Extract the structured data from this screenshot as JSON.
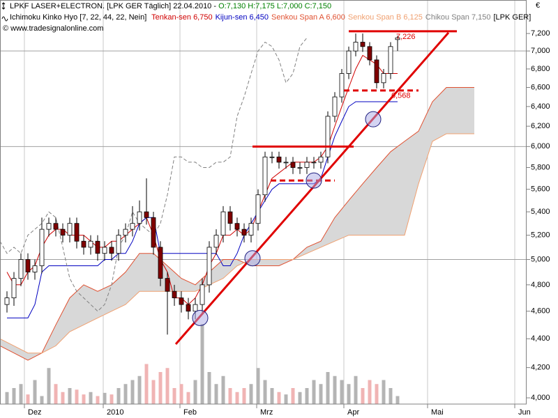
{
  "chart_data": {
    "type": "candlestick",
    "title": "LPKF LASER+ELECTRON. [LPK GER  Täglich] 22.04.2010 - ",
    "ohlc_text": "O:7,130 H:7,175 L:7,000 C:7,150",
    "indicator": "Ichimoku Kinko Hyo [7, 22, 44, 22, Nein]",
    "symbol": "[LPK GER]",
    "source": "© www.tradesignalonline.com",
    "y_unit": "€",
    "log_y": true,
    "xlim": [
      0,
      151
    ],
    "ylim": [
      3960,
      7600
    ],
    "xticks": [
      {
        "value": 7,
        "label": "Dez"
      },
      {
        "value": 29.6,
        "label": "2010"
      },
      {
        "value": 51.6,
        "label": "Feb"
      },
      {
        "value": 73.6,
        "label": "Mrz"
      },
      {
        "value": 98.6,
        "label": "Apr"
      },
      {
        "value": 122.6,
        "label": "Mai"
      },
      {
        "value": 147.6,
        "label": "Jun"
      }
    ],
    "yticks": [
      {
        "value": 4000,
        "label": "4,000"
      },
      {
        "value": 4200,
        "label": "4,200"
      },
      {
        "value": 4400,
        "label": "4,400"
      },
      {
        "value": 4600,
        "label": "4,600"
      },
      {
        "value": 4800,
        "label": "4,800"
      },
      {
        "value": 5000,
        "label": "5,000"
      },
      {
        "value": 5200,
        "label": "5,200"
      },
      {
        "value": 5400,
        "label": "5,400"
      },
      {
        "value": 5600,
        "label": "5,600"
      },
      {
        "value": 5800,
        "label": "5,800"
      },
      {
        "value": 6000,
        "label": "6,000"
      },
      {
        "value": 6200,
        "label": "6,200"
      },
      {
        "value": 6400,
        "label": "6,400"
      },
      {
        "value": 6600,
        "label": "6,600"
      },
      {
        "value": 6800,
        "label": "6,800"
      },
      {
        "value": 7000,
        "label": "7,000"
      },
      {
        "value": 7200,
        "label": "7,200"
      }
    ],
    "ygrid": [
      5000,
      6000,
      7000
    ],
    "up_color": "#ffffff",
    "down_color": "#800000",
    "volume_up_color": "#b4b4b4",
    "volume_down_color": "#f0b4b4",
    "cloud_color": "#d8d8d8",
    "x": [
      2,
      4,
      6,
      8,
      10,
      12,
      14,
      16,
      18,
      20,
      22,
      24,
      26,
      28,
      30,
      32,
      34,
      36,
      38,
      40,
      42,
      44,
      46,
      48,
      50,
      52,
      54,
      56,
      58,
      60,
      62,
      64,
      66,
      68,
      70,
      72,
      74,
      76,
      78,
      80,
      82,
      84,
      86,
      88,
      90,
      92,
      94,
      96,
      98,
      100,
      102,
      104,
      106,
      108,
      110,
      112,
      114
    ],
    "open": [
      4650,
      4700,
      4850,
      5000,
      4900,
      4950,
      5250,
      5300,
      5250,
      5200,
      5300,
      5150,
      5100,
      5150,
      5050,
      5100,
      5050,
      5200,
      5250,
      5300,
      5400,
      5350,
      5100,
      4850,
      4750,
      4700,
      4650,
      4600,
      4650,
      4800,
      5100,
      5200,
      5400,
      5300,
      5250,
      5200,
      5300,
      5550,
      5900,
      5900,
      5850,
      5850,
      5800,
      5800,
      5850,
      5850,
      5900,
      6300,
      6500,
      6750,
      7000,
      7100,
      7050,
      6900,
      6650,
      6750,
      7130
    ],
    "high": [
      4750,
      4900,
      5050,
      5050,
      5000,
      5350,
      5350,
      5350,
      5300,
      5350,
      5350,
      5200,
      5200,
      5200,
      5150,
      5150,
      5250,
      5300,
      5450,
      5500,
      5700,
      5400,
      5150,
      4900,
      4800,
      4750,
      4700,
      4700,
      4850,
      5150,
      5250,
      5450,
      5450,
      5350,
      5300,
      5350,
      5600,
      5950,
      5950,
      5950,
      5900,
      5900,
      5850,
      5900,
      5900,
      5950,
      6350,
      6550,
      6800,
      7050,
      7200,
      7200,
      7100,
      6950,
      6800,
      7100,
      7175
    ],
    "low": [
      4590,
      4640,
      4790,
      4840,
      4840,
      4890,
      5190,
      5190,
      5140,
      5140,
      5090,
      5040,
      5040,
      4990,
      4990,
      4990,
      4990,
      5140,
      5190,
      5240,
      5290,
      5040,
      4790,
      4430,
      4640,
      4590,
      4540,
      4540,
      4590,
      4740,
      5040,
      5140,
      5240,
      5190,
      5140,
      5140,
      5240,
      5490,
      5840,
      5790,
      5790,
      5740,
      5740,
      5740,
      5790,
      5790,
      5840,
      6240,
      6440,
      6690,
      6940,
      6990,
      6840,
      6590,
      6590,
      6690,
      7000
    ],
    "close": [
      4700,
      4850,
      5000,
      4900,
      4950,
      5250,
      5300,
      5250,
      5200,
      5300,
      5150,
      5100,
      5150,
      5050,
      5100,
      5050,
      5200,
      5250,
      5300,
      5400,
      5350,
      5100,
      4850,
      4750,
      4700,
      4650,
      4600,
      4650,
      4800,
      5100,
      5200,
      5400,
      5300,
      5250,
      5200,
      5300,
      5550,
      5900,
      5900,
      5850,
      5850,
      5800,
      5800,
      5850,
      5850,
      5900,
      6300,
      6500,
      6750,
      7000,
      7100,
      7050,
      6900,
      6650,
      6750,
      7050,
      7150
    ],
    "volume": [
      15,
      20,
      25,
      12,
      30,
      10,
      45,
      25,
      15,
      20,
      18,
      12,
      15,
      10,
      14,
      12,
      20,
      25,
      30,
      35,
      50,
      30,
      40,
      45,
      20,
      25,
      15,
      30,
      100,
      40,
      25,
      35,
      20,
      15,
      20,
      25,
      45,
      30,
      20,
      15,
      12,
      20,
      15,
      20,
      30,
      25,
      40,
      35,
      30,
      25,
      35,
      20,
      30,
      25,
      30,
      20,
      10
    ],
    "vlim": [
      0,
      100
    ],
    "series": [
      {
        "name": "Tenkan-sen 6,750",
        "color": "#d00000",
        "values": [
          4900,
          4800,
          4800,
          4900,
          4950,
          5100,
          5200,
          5250,
          5250,
          5200,
          5200,
          5200,
          5150,
          5100,
          5100,
          5150,
          5150,
          5200,
          5250,
          5300,
          5350,
          5200,
          5000,
          4900,
          4700,
          4700,
          4650,
          4700,
          4800,
          4950,
          5050,
          5200,
          5200,
          5250,
          5200,
          5250,
          5400,
          5550,
          5700,
          5750,
          5800,
          5850,
          5850,
          5850,
          5850,
          5900,
          6000,
          6200,
          6400,
          6600,
          6800,
          6950,
          6900,
          6850,
          6750,
          6750,
          6750
        ]
      },
      {
        "name": "Kijun-sen 6,450",
        "color": "#0000c0",
        "values": [
          4550,
          4550,
          4550,
          4550,
          4650,
          4900,
          4950,
          4950,
          4950,
          4950,
          4950,
          4950,
          4950,
          4950,
          5000,
          5000,
          5050,
          5050,
          5150,
          5300,
          5350,
          5350,
          5050,
          5050,
          5050,
          5050,
          5050,
          5050,
          5050,
          5050,
          5050,
          4950,
          4950,
          5050,
          5200,
          5300,
          5400,
          5500,
          5600,
          5650,
          5650,
          5650,
          5650,
          5650,
          5650,
          5700,
          5900,
          6100,
          6250,
          6400,
          6450,
          6450,
          6450,
          6450,
          6450,
          6450,
          6450
        ]
      },
      {
        "name": "Senkou Span A 6,600",
        "color": "#e05030",
        "x": [
          0,
          4,
          8,
          12,
          16,
          20,
          24,
          28,
          32,
          36,
          40,
          44,
          48,
          52,
          56,
          60,
          64,
          68,
          72,
          76,
          80,
          84,
          88,
          92,
          96,
          100,
          104,
          108,
          112,
          116,
          120,
          124,
          128,
          132,
          136
        ],
        "values": [
          4350,
          4300,
          4250,
          4300,
          4500,
          4700,
          4800,
          4750,
          4800,
          4900,
          5050,
          5050,
          4950,
          4850,
          4800,
          4900,
          5000,
          5000,
          4950,
          4950,
          4950,
          5000,
          5100,
          5150,
          5350,
          5500,
          5650,
          5800,
          5950,
          6050,
          6150,
          6450,
          6600,
          6600,
          6600
        ]
      },
      {
        "name": "Senkou Span B 6,125",
        "color": "#f0a070",
        "x": [
          0,
          4,
          8,
          12,
          16,
          20,
          24,
          28,
          32,
          36,
          40,
          44,
          48,
          52,
          56,
          60,
          64,
          68,
          72,
          76,
          80,
          84,
          88,
          92,
          96,
          100,
          104,
          108,
          112,
          116,
          120,
          124,
          128,
          132,
          136
        ],
        "values": [
          4400,
          4350,
          4300,
          4300,
          4350,
          4450,
          4500,
          4550,
          4600,
          4650,
          4750,
          4750,
          4750,
          4750,
          4750,
          4800,
          4850,
          4950,
          5000,
          5000,
          5000,
          5000,
          5050,
          5100,
          5150,
          5200,
          5200,
          5200,
          5200,
          5200,
          5650,
          6050,
          6125,
          6125,
          6125
        ]
      },
      {
        "name": "Chikou Span 7,150",
        "color": "#808080",
        "dash": true,
        "x": [
          0,
          2,
          4,
          6,
          8,
          10,
          12,
          14,
          16,
          18,
          20,
          22,
          24,
          26,
          28,
          30,
          32,
          34,
          36,
          38,
          40,
          42,
          44,
          46,
          48,
          50,
          52,
          54,
          56,
          58,
          60,
          62,
          64,
          66,
          68,
          70,
          72,
          74,
          76,
          78,
          80,
          82,
          84,
          86,
          88
        ],
        "values": [
          5150,
          5050,
          5100,
          5050,
          5200,
          5250,
          5300,
          5400,
          5350,
          5100,
          4850,
          4750,
          4700,
          4650,
          4600,
          4650,
          4800,
          5100,
          5200,
          5400,
          5300,
          5250,
          5200,
          5300,
          5550,
          5900,
          5900,
          5850,
          5850,
          5800,
          5800,
          5850,
          5850,
          5900,
          6300,
          6500,
          6750,
          7000,
          7100,
          7050,
          6900,
          6650,
          6750,
          7050,
          7150
        ]
      }
    ],
    "drawing_color": "#e00000",
    "levels": [
      {
        "value": 7226,
        "label": "7,226",
        "x": [
          100,
          131
        ]
      },
      {
        "value": 6000,
        "x": [
          72.4,
          101.4
        ]
      },
      {
        "value": 5680,
        "x": [
          77.6,
          96
        ],
        "dash": true
      },
      {
        "value": 6568,
        "label": "6,568",
        "x": [
          98.6,
          120
        ],
        "dash": true
      }
    ],
    "trendline": {
      "x": [
        50.4,
        128.6
      ],
      "y": [
        4362,
        7210
      ]
    },
    "markers": {
      "x": [
        57.4,
        72.4,
        90,
        107
      ],
      "y": [
        4550,
        5010,
        5680,
        6270
      ]
    }
  }
}
